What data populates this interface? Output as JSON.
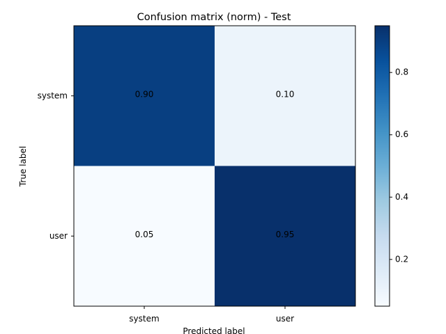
{
  "chart_data": {
    "type": "heatmap",
    "title": "Confusion matrix (norm) - Test",
    "xlabel": "Predicted label",
    "ylabel": "True label",
    "x_categories": [
      "system",
      "user"
    ],
    "y_categories": [
      "system",
      "user"
    ],
    "values": [
      [
        0.9,
        0.1
      ],
      [
        0.05,
        0.95
      ]
    ],
    "cell_labels": [
      [
        "0.90",
        "0.10"
      ],
      [
        "0.05",
        "0.95"
      ]
    ],
    "colormap": "Blues",
    "color_range": [
      0.05,
      0.95
    ],
    "colorbar_ticks": [
      0.2,
      0.4,
      0.6,
      0.8
    ],
    "colorbar_tick_labels": [
      "0.2",
      "0.4",
      "0.6",
      "0.8"
    ],
    "text_color_dark": "#ffffff",
    "text_color_light": "#000000"
  }
}
